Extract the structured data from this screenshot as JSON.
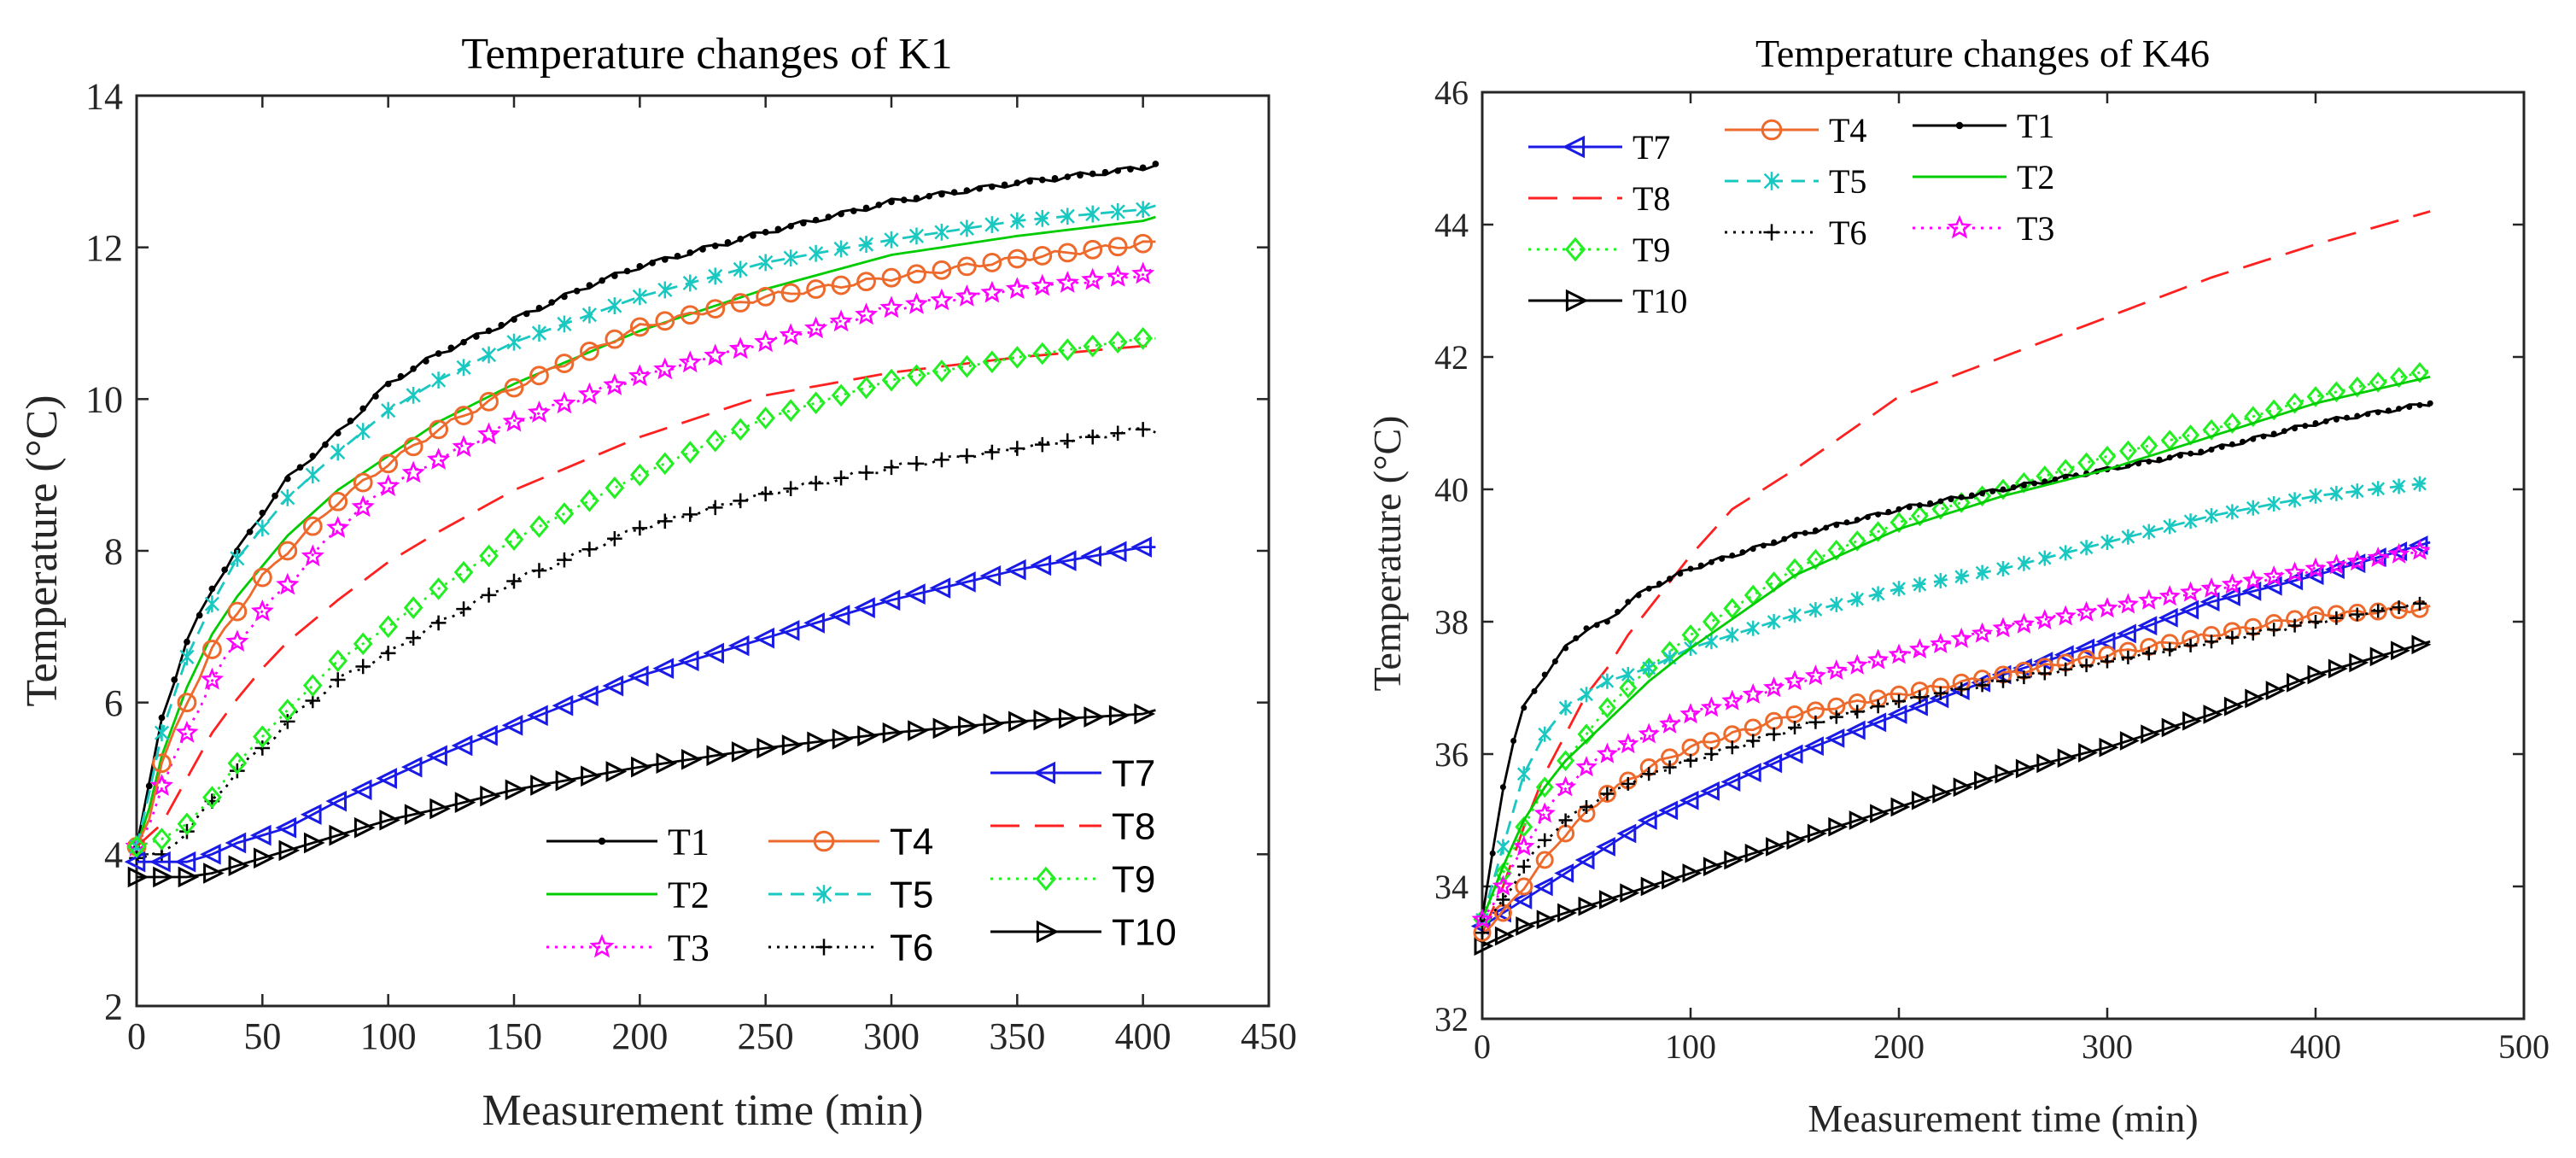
{
  "chart_data": [
    {
      "type": "line",
      "title": "Temperature changes of K1",
      "xlabel": "Measurement time (min)",
      "ylabel": "Temperature (°C)",
      "xlim": [
        0,
        450
      ],
      "ylim": [
        2,
        14
      ],
      "xticks": [
        0,
        50,
        100,
        150,
        200,
        250,
        300,
        350,
        400,
        450
      ],
      "yticks": [
        2,
        4,
        6,
        8,
        10,
        12,
        14
      ],
      "xtick_labels": [
        "0",
        "50",
        "100",
        "150",
        "200",
        "250",
        "300",
        "350",
        "400",
        "450"
      ],
      "ytick_labels": [
        "2",
        "4",
        "6",
        "8",
        "10",
        "12",
        "14"
      ],
      "legend_location": "bottom-right",
      "series": [
        {
          "name": "T1",
          "color": "#000000",
          "marker": "dot",
          "dash": "solid",
          "x": [
            0,
            5,
            10,
            20,
            30,
            40,
            50,
            60,
            80,
            100,
            120,
            150,
            180,
            200,
            250,
            300,
            350,
            400,
            405
          ],
          "values": [
            4.1,
            4.9,
            5.8,
            6.8,
            7.5,
            8.0,
            8.5,
            8.95,
            9.55,
            10.2,
            10.6,
            11.05,
            11.5,
            11.75,
            12.2,
            12.6,
            12.85,
            13.05,
            13.1
          ]
        },
        {
          "name": "T2",
          "color": "#00cc00",
          "marker": "none",
          "dash": "solid",
          "x": [
            0,
            5,
            10,
            20,
            30,
            40,
            50,
            60,
            80,
            100,
            120,
            150,
            200,
            250,
            300,
            350,
            400,
            405
          ],
          "values": [
            4.1,
            4.6,
            5.3,
            6.2,
            6.9,
            7.4,
            7.8,
            8.2,
            8.8,
            9.25,
            9.7,
            10.2,
            10.9,
            11.45,
            11.9,
            12.15,
            12.35,
            12.4
          ]
        },
        {
          "name": "T3",
          "color": "#ff00ff",
          "marker": "star",
          "dash": "dotted",
          "x": [
            0,
            5,
            10,
            20,
            30,
            40,
            50,
            60,
            80,
            100,
            120,
            150,
            200,
            250,
            300,
            350,
            400,
            405
          ],
          "values": [
            4.1,
            4.4,
            4.9,
            5.6,
            6.3,
            6.8,
            7.2,
            7.55,
            8.3,
            8.85,
            9.2,
            9.7,
            10.3,
            10.75,
            11.2,
            11.45,
            11.65,
            11.7
          ]
        },
        {
          "name": "T4",
          "color": "#ee6a2c",
          "marker": "circle",
          "dash": "solid",
          "x": [
            0,
            5,
            10,
            20,
            30,
            40,
            50,
            60,
            80,
            100,
            120,
            150,
            200,
            250,
            300,
            350,
            400,
            405
          ],
          "values": [
            4.1,
            4.5,
            5.2,
            6.0,
            6.7,
            7.2,
            7.65,
            8.0,
            8.65,
            9.15,
            9.6,
            10.15,
            10.95,
            11.35,
            11.6,
            11.85,
            12.05,
            12.05
          ]
        },
        {
          "name": "T5",
          "color": "#19c8c0",
          "marker": "x",
          "dash": "dashed",
          "x": [
            0,
            5,
            10,
            20,
            30,
            40,
            50,
            60,
            80,
            100,
            120,
            150,
            200,
            250,
            300,
            350,
            400,
            405
          ],
          "values": [
            4.1,
            4.8,
            5.6,
            6.6,
            7.3,
            7.9,
            8.3,
            8.7,
            9.3,
            9.85,
            10.25,
            10.75,
            11.35,
            11.8,
            12.1,
            12.35,
            12.5,
            12.55
          ]
        },
        {
          "name": "T6",
          "color": "#000000",
          "marker": "plus",
          "dash": "dotted",
          "x": [
            0,
            10,
            20,
            30,
            40,
            50,
            60,
            80,
            100,
            120,
            150,
            200,
            250,
            300,
            350,
            400,
            405
          ],
          "values": [
            3.95,
            4.0,
            4.3,
            4.7,
            5.1,
            5.4,
            5.75,
            6.3,
            6.65,
            7.05,
            7.6,
            8.3,
            8.75,
            9.1,
            9.35,
            9.6,
            9.6
          ]
        },
        {
          "name": "T7",
          "color": "#1a1ae6",
          "marker": "triangle-left",
          "dash": "solid",
          "x": [
            0,
            10,
            20,
            30,
            40,
            50,
            60,
            80,
            100,
            120,
            150,
            200,
            250,
            300,
            350,
            400,
            405
          ],
          "values": [
            3.9,
            3.9,
            3.9,
            4.0,
            4.15,
            4.25,
            4.35,
            4.7,
            5.0,
            5.3,
            5.7,
            6.35,
            6.85,
            7.35,
            7.75,
            8.05,
            8.05
          ]
        },
        {
          "name": "T8",
          "color": "#ff2020",
          "marker": "none",
          "dash": "longdash",
          "x": [
            0,
            10,
            20,
            30,
            40,
            50,
            60,
            80,
            100,
            120,
            150,
            200,
            250,
            300,
            350,
            400,
            405
          ],
          "values": [
            4.1,
            4.4,
            5.0,
            5.6,
            6.05,
            6.45,
            6.8,
            7.35,
            7.85,
            8.25,
            8.8,
            9.5,
            10.05,
            10.35,
            10.55,
            10.7,
            10.7
          ]
        },
        {
          "name": "T9",
          "color": "#22ee22",
          "marker": "diamond",
          "dash": "dotted",
          "x": [
            0,
            10,
            20,
            30,
            40,
            50,
            60,
            80,
            100,
            120,
            150,
            200,
            250,
            300,
            350,
            400,
            405
          ],
          "values": [
            4.1,
            4.2,
            4.4,
            4.75,
            5.2,
            5.55,
            5.9,
            6.55,
            7.0,
            7.5,
            8.15,
            9.0,
            9.75,
            10.25,
            10.55,
            10.8,
            10.8
          ]
        },
        {
          "name": "T10",
          "color": "#000000",
          "marker": "triangle-right",
          "dash": "solid",
          "x": [
            0,
            10,
            20,
            30,
            40,
            50,
            60,
            80,
            100,
            120,
            150,
            200,
            250,
            300,
            350,
            400,
            405
          ],
          "values": [
            3.7,
            3.7,
            3.7,
            3.75,
            3.85,
            3.95,
            4.05,
            4.25,
            4.45,
            4.6,
            4.85,
            5.15,
            5.4,
            5.6,
            5.75,
            5.85,
            5.9
          ]
        }
      ]
    },
    {
      "type": "line",
      "title": "Temperature changes of K46",
      "xlabel": "Measurement time (min)",
      "ylabel": "Temperature (°C)",
      "xlim": [
        0,
        500
      ],
      "ylim": [
        32,
        46
      ],
      "xticks": [
        0,
        100,
        200,
        300,
        400,
        500
      ],
      "yticks": [
        32,
        34,
        36,
        38,
        40,
        42,
        44,
        46
      ],
      "xtick_labels": [
        "0",
        "100",
        "200",
        "300",
        "400",
        "500"
      ],
      "ytick_labels": [
        "32",
        "34",
        "36",
        "38",
        "40",
        "42",
        "44",
        "46"
      ],
      "legend_location": "top-left",
      "series": [
        {
          "name": "T7",
          "color": "#1a1ae6",
          "marker": "triangle-left",
          "dash": "solid",
          "x": [
            0,
            20,
            40,
            60,
            80,
            100,
            150,
            200,
            250,
            300,
            350,
            400,
            455
          ],
          "values": [
            33.4,
            33.8,
            34.2,
            34.6,
            35.0,
            35.3,
            36.0,
            36.6,
            37.2,
            37.7,
            38.3,
            38.7,
            39.2
          ]
        },
        {
          "name": "T8",
          "color": "#ff2020",
          "marker": "none",
          "dash": "longdash",
          "x": [
            0,
            10,
            20,
            30,
            40,
            50,
            60,
            70,
            80,
            100,
            120,
            150,
            200,
            250,
            300,
            350,
            400,
            455
          ],
          "values": [
            33.3,
            34.0,
            34.9,
            35.7,
            36.3,
            36.9,
            37.3,
            37.8,
            38.2,
            39.0,
            39.7,
            40.3,
            41.4,
            42.0,
            42.6,
            43.2,
            43.7,
            44.2
          ]
        },
        {
          "name": "T9",
          "color": "#22ee22",
          "marker": "diamond",
          "dash": "dotted",
          "x": [
            0,
            10,
            20,
            30,
            40,
            50,
            60,
            80,
            100,
            150,
            200,
            250,
            300,
            350,
            400,
            455
          ],
          "values": [
            33.5,
            34.2,
            34.9,
            35.5,
            35.9,
            36.3,
            36.7,
            37.3,
            37.8,
            38.8,
            39.5,
            40.0,
            40.5,
            40.9,
            41.4,
            41.8
          ]
        },
        {
          "name": "T10",
          "color": "#000000",
          "marker": "triangle-right",
          "dash": "solid",
          "x": [
            0,
            20,
            40,
            60,
            80,
            100,
            150,
            200,
            250,
            300,
            350,
            400,
            455
          ],
          "values": [
            33.1,
            33.4,
            33.6,
            33.8,
            34.0,
            34.2,
            34.7,
            35.2,
            35.7,
            36.1,
            36.6,
            37.2,
            37.7
          ]
        },
        {
          "name": "T4",
          "color": "#ee6a2c",
          "marker": "circle",
          "dash": "solid",
          "x": [
            0,
            10,
            20,
            30,
            40,
            50,
            60,
            80,
            100,
            150,
            200,
            250,
            300,
            350,
            400,
            455
          ],
          "values": [
            33.3,
            33.6,
            34.0,
            34.4,
            34.8,
            35.1,
            35.4,
            35.8,
            36.1,
            36.6,
            36.9,
            37.2,
            37.5,
            37.8,
            38.1,
            38.2
          ]
        },
        {
          "name": "T5",
          "color": "#19c8c0",
          "marker": "x",
          "dash": "dashed",
          "x": [
            0,
            10,
            20,
            30,
            40,
            50,
            60,
            80,
            100,
            150,
            200,
            250,
            300,
            350,
            400,
            455
          ],
          "values": [
            33.5,
            34.6,
            35.7,
            36.3,
            36.7,
            36.9,
            37.1,
            37.3,
            37.6,
            38.1,
            38.5,
            38.8,
            39.2,
            39.6,
            39.9,
            40.1
          ]
        },
        {
          "name": "T6",
          "color": "#000000",
          "marker": "plus",
          "dash": "dotted",
          "x": [
            0,
            10,
            20,
            30,
            40,
            50,
            60,
            80,
            100,
            150,
            200,
            250,
            300,
            350,
            400,
            455
          ],
          "values": [
            33.3,
            33.8,
            34.3,
            34.7,
            35.0,
            35.2,
            35.4,
            35.7,
            35.9,
            36.4,
            36.8,
            37.1,
            37.4,
            37.7,
            38.0,
            38.3
          ]
        },
        {
          "name": "T1",
          "color": "#000000",
          "marker": "dot",
          "dash": "solid",
          "x": [
            0,
            5,
            10,
            15,
            20,
            30,
            40,
            50,
            60,
            70,
            80,
            100,
            150,
            200,
            250,
            300,
            350,
            400,
            455
          ],
          "values": [
            33.5,
            34.5,
            35.5,
            36.2,
            36.7,
            37.2,
            37.6,
            37.9,
            38.0,
            38.3,
            38.5,
            38.8,
            39.3,
            39.7,
            40.0,
            40.3,
            40.6,
            41.0,
            41.3
          ]
        },
        {
          "name": "T2",
          "color": "#00cc00",
          "marker": "none",
          "dash": "solid",
          "x": [
            0,
            10,
            20,
            30,
            40,
            50,
            60,
            80,
            100,
            150,
            200,
            250,
            300,
            350,
            400,
            455
          ],
          "values": [
            33.5,
            34.3,
            35.0,
            35.5,
            35.9,
            36.2,
            36.5,
            37.1,
            37.6,
            38.7,
            39.4,
            39.9,
            40.3,
            40.8,
            41.3,
            41.7
          ]
        },
        {
          "name": "T3",
          "color": "#ff00ff",
          "marker": "star",
          "dash": "dotted",
          "x": [
            0,
            10,
            20,
            30,
            40,
            50,
            60,
            80,
            100,
            150,
            200,
            250,
            300,
            350,
            400,
            455
          ],
          "values": [
            33.5,
            34.0,
            34.6,
            35.1,
            35.5,
            35.8,
            36.0,
            36.3,
            36.6,
            37.1,
            37.5,
            37.9,
            38.2,
            38.5,
            38.8,
            39.1
          ]
        }
      ]
    }
  ]
}
